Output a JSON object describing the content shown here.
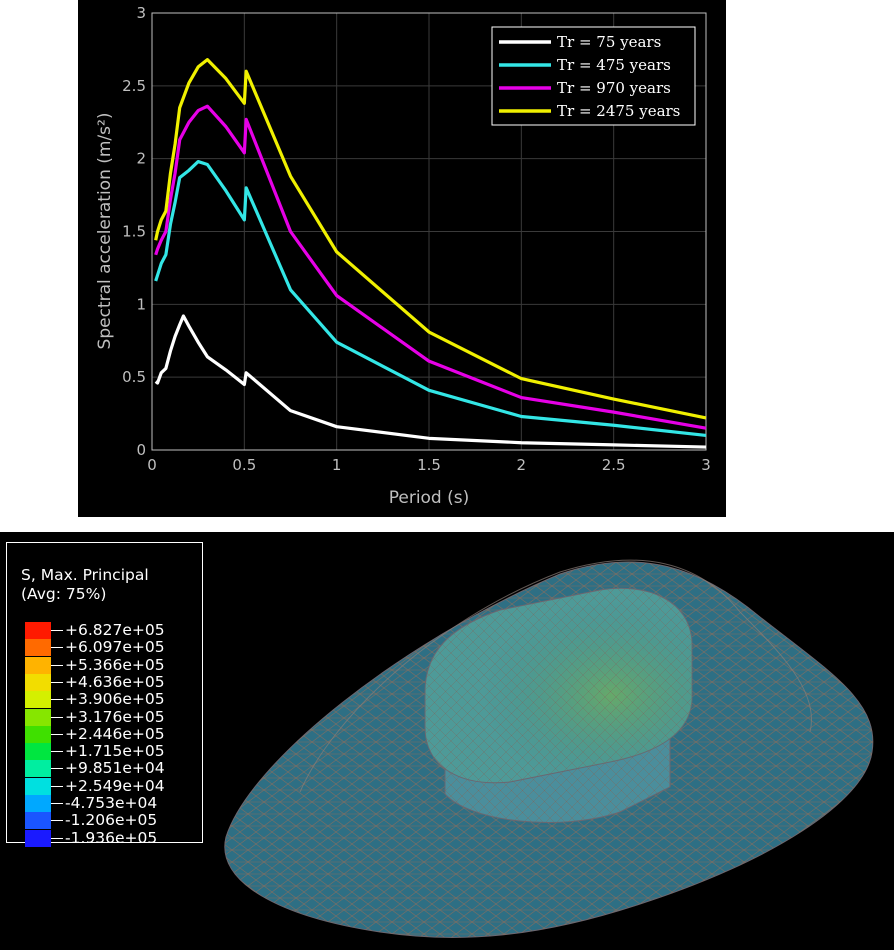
{
  "chart_data": {
    "type": "line",
    "xlabel": "Period (s)",
    "ylabel": "Spectral acceleration (m/s²)",
    "xlim": [
      0,
      3
    ],
    "ylim": [
      0,
      3
    ],
    "xticks": [
      "0",
      "0.5",
      "1",
      "1.5",
      "2",
      "2.5",
      "3"
    ],
    "yticks": [
      "0",
      "0.5",
      "1",
      "1.5",
      "2",
      "2.5",
      "3"
    ],
    "grid": true,
    "legend_position": "top-right",
    "series": [
      {
        "name": "Tr = 75 years",
        "color": "#ffffff",
        "points": [
          [
            0.02,
            0.47
          ],
          [
            0.03,
            0.46
          ],
          [
            0.05,
            0.53
          ],
          [
            0.075,
            0.56
          ],
          [
            0.1,
            0.68
          ],
          [
            0.125,
            0.78
          ],
          [
            0.15,
            0.86
          ],
          [
            0.17,
            0.92
          ],
          [
            0.2,
            0.85
          ],
          [
            0.25,
            0.74
          ],
          [
            0.3,
            0.64
          ],
          [
            0.4,
            0.55
          ],
          [
            0.5,
            0.45
          ],
          [
            0.51,
            0.53
          ],
          [
            0.75,
            0.27
          ],
          [
            1.0,
            0.16
          ],
          [
            1.5,
            0.08
          ],
          [
            2.0,
            0.05
          ],
          [
            2.5,
            0.035
          ],
          [
            3.0,
            0.02
          ]
        ]
      },
      {
        "name": "Tr = 475 years",
        "color": "#33e6e6",
        "points": [
          [
            0.02,
            1.16
          ],
          [
            0.03,
            1.2
          ],
          [
            0.05,
            1.28
          ],
          [
            0.075,
            1.34
          ],
          [
            0.1,
            1.55
          ],
          [
            0.125,
            1.7
          ],
          [
            0.15,
            1.87
          ],
          [
            0.2,
            1.92
          ],
          [
            0.25,
            1.98
          ],
          [
            0.3,
            1.96
          ],
          [
            0.4,
            1.78
          ],
          [
            0.5,
            1.58
          ],
          [
            0.51,
            1.8
          ],
          [
            0.75,
            1.1
          ],
          [
            1.0,
            0.74
          ],
          [
            1.5,
            0.41
          ],
          [
            2.0,
            0.23
          ],
          [
            2.5,
            0.17
          ],
          [
            3.0,
            0.1
          ]
        ]
      },
      {
        "name": "Tr = 970 years",
        "color": "#e600e6",
        "points": [
          [
            0.02,
            1.34
          ],
          [
            0.03,
            1.38
          ],
          [
            0.05,
            1.44
          ],
          [
            0.075,
            1.5
          ],
          [
            0.1,
            1.72
          ],
          [
            0.125,
            1.9
          ],
          [
            0.15,
            2.13
          ],
          [
            0.2,
            2.25
          ],
          [
            0.25,
            2.33
          ],
          [
            0.3,
            2.36
          ],
          [
            0.4,
            2.22
          ],
          [
            0.5,
            2.04
          ],
          [
            0.51,
            2.27
          ],
          [
            0.75,
            1.5
          ],
          [
            1.0,
            1.06
          ],
          [
            1.5,
            0.61
          ],
          [
            2.0,
            0.36
          ],
          [
            2.5,
            0.26
          ],
          [
            3.0,
            0.15
          ]
        ]
      },
      {
        "name": "Tr = 2475 years",
        "color": "#f0f000",
        "points": [
          [
            0.02,
            1.44
          ],
          [
            0.03,
            1.5
          ],
          [
            0.05,
            1.58
          ],
          [
            0.075,
            1.64
          ],
          [
            0.1,
            1.9
          ],
          [
            0.125,
            2.1
          ],
          [
            0.15,
            2.35
          ],
          [
            0.2,
            2.52
          ],
          [
            0.25,
            2.63
          ],
          [
            0.3,
            2.68
          ],
          [
            0.4,
            2.55
          ],
          [
            0.5,
            2.38
          ],
          [
            0.51,
            2.6
          ],
          [
            0.75,
            1.88
          ],
          [
            1.0,
            1.36
          ],
          [
            1.5,
            0.81
          ],
          [
            2.0,
            0.49
          ],
          [
            2.5,
            0.35
          ],
          [
            3.0,
            0.22
          ]
        ]
      }
    ]
  },
  "fea": {
    "legend_title_1": "S, Max. Principal",
    "legend_title_2": "(Avg: 75%)",
    "scale": [
      {
        "value": "+6.827e+05",
        "color": "#ff1a00"
      },
      {
        "value": "+6.097e+05",
        "color": "#ff6a00"
      },
      {
        "value": "+5.366e+05",
        "color": "#ffb300"
      },
      {
        "value": "+4.636e+05",
        "color": "#f2dd00"
      },
      {
        "value": "+3.906e+05",
        "color": "#d4f000"
      },
      {
        "value": "+3.176e+05",
        "color": "#86e600"
      },
      {
        "value": "+2.446e+05",
        "color": "#3fe000"
      },
      {
        "value": "+1.715e+05",
        "color": "#00e640"
      },
      {
        "value": "+9.851e+04",
        "color": "#00eea0"
      },
      {
        "value": "+2.549e+04",
        "color": "#00e0e0"
      },
      {
        "value": "-4.753e+04",
        "color": "#00a8ff"
      },
      {
        "value": "-1.206e+05",
        "color": "#1a55ff"
      },
      {
        "value": "-1.936e+05",
        "color": "#1a1aff"
      }
    ]
  }
}
